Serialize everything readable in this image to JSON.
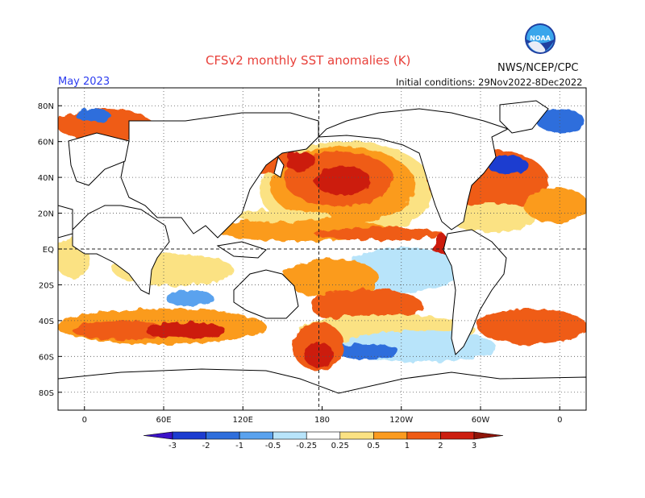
{
  "title": "CFSv2 monthly SST anomalies (K)",
  "valid_month": "May 2023",
  "initial_conditions": "Initial conditions: 29Nov2022-8Dec2022",
  "agency": "NWS/NCEP/CPC",
  "logo_text": "NOAA",
  "colors": {
    "title": "#e8403a",
    "valid_month": "#2c3cf0",
    "ocean_neutral": "#ffffff",
    "land": "#ffffff",
    "coast": "#000000"
  },
  "map": {
    "lat_labels": [
      "80N",
      "60N",
      "40N",
      "20N",
      "EQ",
      "20S",
      "40S",
      "60S",
      "80S"
    ],
    "lon_labels": [
      "0",
      "60E",
      "120E",
      "180",
      "120W",
      "60W",
      "0"
    ],
    "lat_values": [
      80,
      60,
      40,
      20,
      0,
      -20,
      -40,
      -60,
      -80
    ],
    "lon_values": [
      0,
      60,
      120,
      180,
      240,
      300,
      360
    ],
    "lon_range": [
      -20,
      380
    ],
    "lat_range": [
      -90,
      90
    ]
  },
  "legend": {
    "tick_labels": [
      "-3",
      "-2",
      "-1",
      "-0.5",
      "-0.25",
      "0.25",
      "0.5",
      "1",
      "2",
      "3"
    ],
    "bins": [
      {
        "range": "< -3",
        "color": "#3c12c8"
      },
      {
        "range": "-3 to -2",
        "color": "#1c3cd0"
      },
      {
        "range": "-2 to -1",
        "color": "#2e6edc"
      },
      {
        "range": "-1 to -0.5",
        "color": "#5aa2ee"
      },
      {
        "range": "-0.5 to -0.25",
        "color": "#b8e4fa"
      },
      {
        "range": "-0.25 to 0.25",
        "color": "#ffffff"
      },
      {
        "range": "0.25 to 0.5",
        "color": "#fbe283"
      },
      {
        "range": "0.5 to 1",
        "color": "#fb9b1f"
      },
      {
        "range": "1 to 2",
        "color": "#ef5b14"
      },
      {
        "range": "2 to 3",
        "color": "#cc1e10"
      },
      {
        "range": "> 3",
        "color": "#8e1408"
      }
    ]
  }
}
